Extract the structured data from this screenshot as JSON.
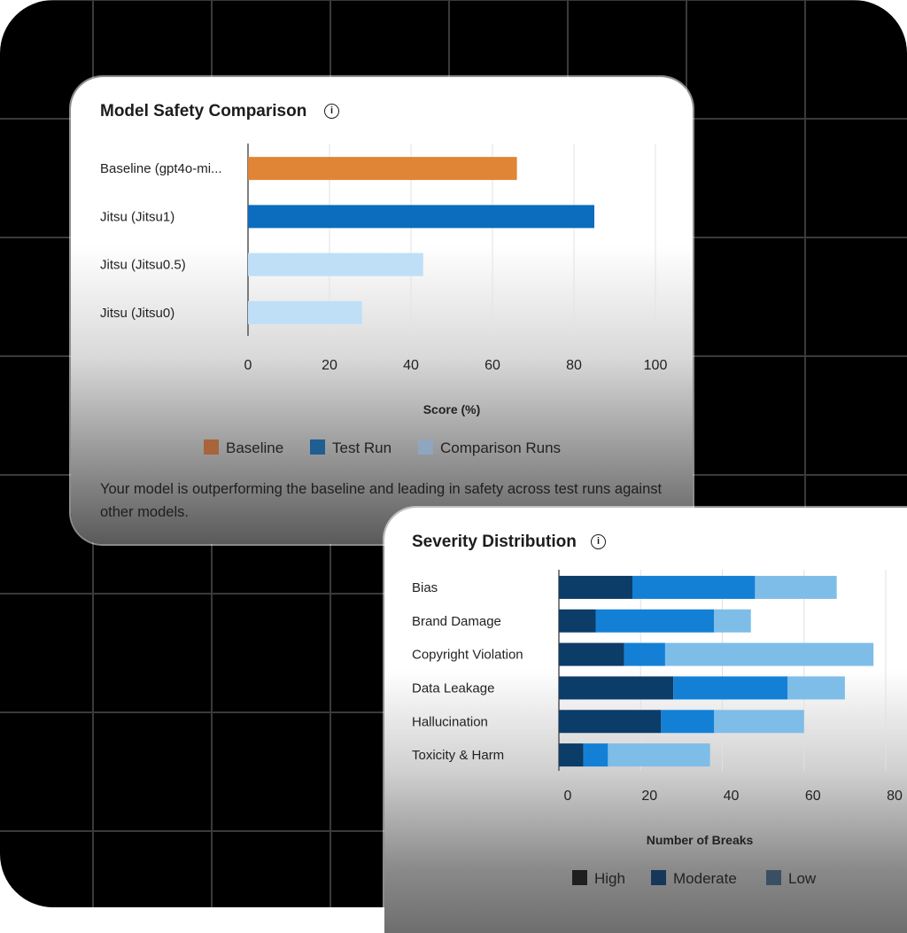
{
  "chart1": {
    "title": "Model Safety Comparison",
    "caption": "Your model is outperforming the baseline and leading in safety across test runs against other models.",
    "legend": [
      {
        "label": "Baseline",
        "color": "#a8643a"
      },
      {
        "label": "Test Run",
        "color": "#1f5e92"
      },
      {
        "label": "Comparison Runs",
        "color": "#8ea7bf"
      }
    ]
  },
  "chart2": {
    "title": "Severity Distribution",
    "legend": [
      {
        "label": "High",
        "color": "#1f1f1f"
      },
      {
        "label": "Moderate",
        "color": "#16365a"
      },
      {
        "label": "Low",
        "color": "#3a4f63"
      }
    ]
  },
  "chart_data": [
    {
      "type": "bar",
      "orientation": "horizontal",
      "title": "Model Safety Comparison",
      "categories": [
        "Baseline (gpt4o-mi...",
        "Jitsu (Jitsu1)",
        "Jitsu (Jitsu0.5)",
        "Jitsu (Jitsu0)"
      ],
      "values": [
        66,
        85,
        43,
        28
      ],
      "bar_colors": [
        "#e08436",
        "#0c6cbd",
        "#bfdff7",
        "#bfdff7"
      ],
      "xlabel": "Score (%)",
      "ylabel": "",
      "xlim": [
        0,
        100
      ],
      "xticks": [
        0,
        20,
        40,
        60,
        80,
        100
      ],
      "grid": true,
      "legend": "bottom"
    },
    {
      "type": "bar",
      "orientation": "horizontal",
      "stacked": true,
      "title": "Severity Distribution",
      "categories": [
        "Bias",
        "Brand Damage",
        "Copyright Violation",
        "Data Leakage",
        "Hallucination",
        "Toxicity & Harm"
      ],
      "series": [
        {
          "name": "High",
          "values": [
            18,
            9,
            16,
            28,
            25,
            6
          ],
          "color": "#0c3c68"
        },
        {
          "name": "Moderate",
          "values": [
            30,
            29,
            10,
            28,
            13,
            6
          ],
          "color": "#1380d6"
        },
        {
          "name": "Low",
          "values": [
            20,
            9,
            51,
            14,
            22,
            25
          ],
          "color": "#7fbde9"
        }
      ],
      "xlabel": "Number of Breaks",
      "ylabel": "",
      "xlim": [
        0,
        80
      ],
      "xticks": [
        0,
        20,
        40,
        60,
        80
      ],
      "grid": true,
      "legend": "bottom"
    }
  ]
}
